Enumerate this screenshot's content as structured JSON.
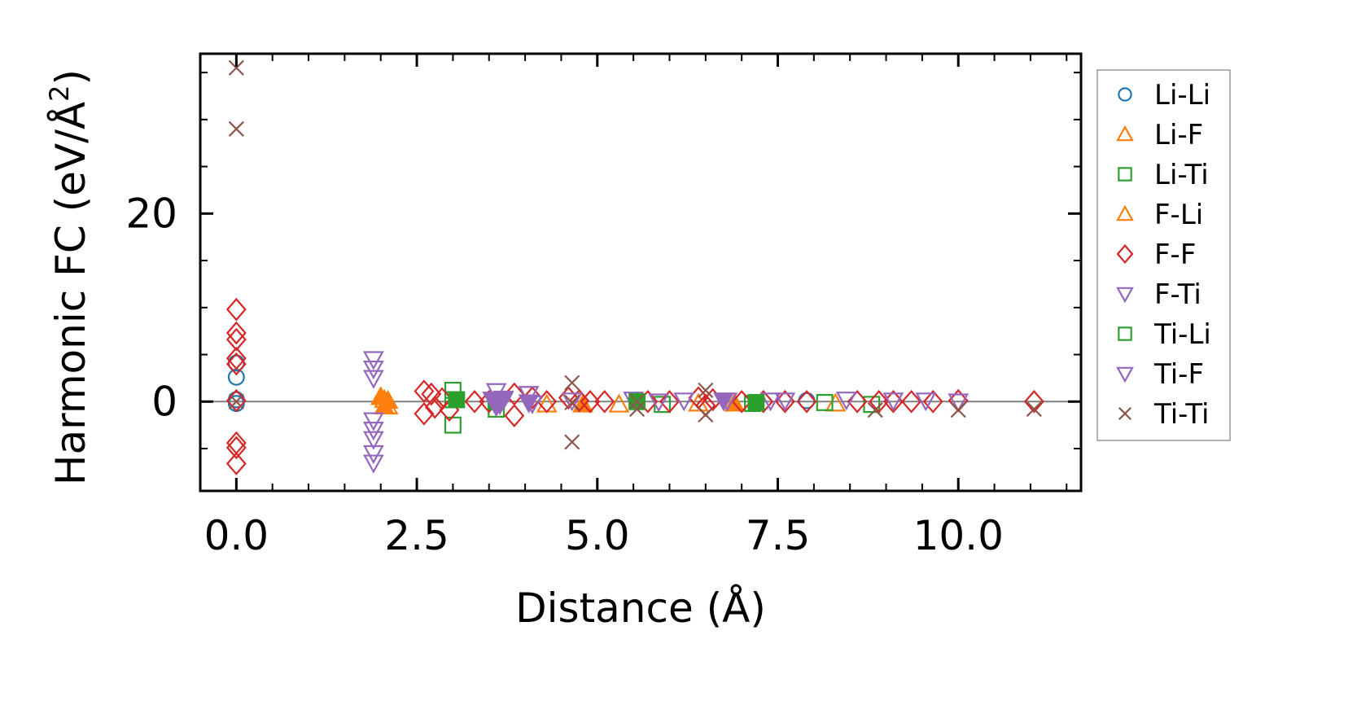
{
  "chart_data": {
    "type": "scatter",
    "title": "",
    "xlabel": "Distance (Å)",
    "ylabel": "Harmonic FC (eV/Å",
    "ylabel_superscript": "2",
    "ylabel_close": ")",
    "xlim": [
      -0.5,
      11.7
    ],
    "ylim": [
      -9.5,
      37.0
    ],
    "xticks": [
      0.0,
      2.5,
      5.0,
      7.5,
      10.0
    ],
    "xtick_labels": [
      "0.0",
      "2.5",
      "5.0",
      "7.5",
      "10.0"
    ],
    "yticks": [
      0,
      20
    ],
    "ytick_labels": [
      "0",
      "20"
    ],
    "reference_line_y": 0,
    "legend_position": "outside-right",
    "series": [
      {
        "name": "Li-Li",
        "marker": "circle",
        "color": "#1f77b4",
        "filled": false,
        "points": [
          [
            0,
            4.1
          ],
          [
            0,
            2.6
          ],
          [
            0,
            0.2
          ],
          [
            0,
            -0.2
          ],
          [
            5.55,
            0.1
          ],
          [
            7.9,
            0.1
          ]
        ]
      },
      {
        "name": "Li-F",
        "marker": "triangle-up",
        "color": "#ff7f0e",
        "filled": false,
        "points": [
          [
            2.05,
            0.2
          ],
          [
            2.1,
            -0.5
          ],
          [
            4.3,
            -0.3
          ],
          [
            5.3,
            -0.3
          ],
          [
            6.4,
            -0.2
          ],
          [
            8.3,
            -0.2
          ]
        ]
      },
      {
        "name": "Li-Ti",
        "marker": "square",
        "color": "#2ca02c",
        "filled": false,
        "points": [
          [
            3.0,
            1.2
          ],
          [
            3.0,
            -2.5
          ],
          [
            3.0,
            0.2
          ],
          [
            3.6,
            -0.8
          ],
          [
            5.9,
            -0.3
          ],
          [
            7.15,
            -0.2
          ],
          [
            8.15,
            -0.1
          ],
          [
            8.8,
            -0.3
          ]
        ]
      },
      {
        "name": "F-Li",
        "marker": "triangle-up",
        "color": "#ff7f0e",
        "filled": true,
        "points": [
          [
            2.0,
            0.5
          ],
          [
            2.05,
            -0.5
          ],
          [
            2.1,
            0.1
          ],
          [
            4.8,
            -0.3
          ],
          [
            6.9,
            -0.2
          ]
        ]
      },
      {
        "name": "F-F",
        "marker": "diamond",
        "color": "#d62728",
        "filled": false,
        "points": [
          [
            0,
            9.8
          ],
          [
            0,
            7.3
          ],
          [
            0,
            6.6
          ],
          [
            0,
            4.6
          ],
          [
            0,
            4.0
          ],
          [
            0,
            -4.4
          ],
          [
            0,
            -4.9
          ],
          [
            0,
            -6.6
          ],
          [
            0,
            0.1
          ],
          [
            2.6,
            1.1
          ],
          [
            2.6,
            -1.3
          ],
          [
            2.7,
            0.8
          ],
          [
            2.75,
            -0.6
          ],
          [
            2.85,
            0.3
          ],
          [
            2.95,
            -0.9
          ],
          [
            3.3,
            0.0
          ],
          [
            3.5,
            0.0
          ],
          [
            3.85,
            0.8
          ],
          [
            3.85,
            -1.5
          ],
          [
            4.1,
            0.4
          ],
          [
            4.3,
            0.0
          ],
          [
            4.6,
            0.4
          ],
          [
            4.75,
            0.1
          ],
          [
            4.9,
            0.0
          ],
          [
            5.1,
            0.0
          ],
          [
            5.7,
            0.0
          ],
          [
            6.0,
            0.0
          ],
          [
            6.4,
            0.4
          ],
          [
            6.5,
            -0.4
          ],
          [
            6.6,
            0.2
          ],
          [
            7.0,
            0.0
          ],
          [
            7.3,
            0.0
          ],
          [
            7.6,
            0.0
          ],
          [
            7.9,
            0.0
          ],
          [
            8.6,
            0.0
          ],
          [
            8.9,
            0.0
          ],
          [
            9.1,
            0.0
          ],
          [
            9.35,
            0.0
          ],
          [
            9.65,
            0.0
          ],
          [
            10.0,
            0.1
          ],
          [
            11.05,
            0.0
          ]
        ]
      },
      {
        "name": "F-Ti",
        "marker": "triangle-down",
        "color": "#9467bd",
        "filled": false,
        "points": [
          [
            1.9,
            4.5
          ],
          [
            1.9,
            3.5
          ],
          [
            1.9,
            2.5
          ],
          [
            1.9,
            -2.0
          ],
          [
            1.9,
            -3.0
          ],
          [
            1.9,
            -4.0
          ],
          [
            1.9,
            -5.5
          ],
          [
            1.9,
            -6.5
          ],
          [
            3.6,
            1.1
          ],
          [
            3.6,
            -0.5
          ],
          [
            3.7,
            0.2
          ],
          [
            4.05,
            0.8
          ],
          [
            4.1,
            -0.2
          ],
          [
            4.65,
            0.1
          ],
          [
            5.5,
            0.2
          ],
          [
            5.85,
            0.0
          ],
          [
            6.2,
            0.1
          ],
          [
            6.8,
            0.1
          ],
          [
            7.4,
            0.1
          ],
          [
            7.6,
            0.1
          ],
          [
            8.45,
            0.2
          ],
          [
            9.1,
            0.1
          ],
          [
            9.55,
            0.1
          ],
          [
            10.0,
            0.0
          ]
        ]
      },
      {
        "name": "Ti-Li",
        "marker": "square",
        "color": "#2ca02c",
        "filled": true,
        "points": [
          [
            3.05,
            0.2
          ],
          [
            3.6,
            0.0
          ],
          [
            5.55,
            0.0
          ],
          [
            7.2,
            -0.1
          ]
        ]
      },
      {
        "name": "Ti-F",
        "marker": "triangle-down",
        "color": "#9467bd",
        "filled": true,
        "points": [
          [
            3.55,
            0.2
          ],
          [
            3.65,
            -0.3
          ],
          [
            3.7,
            0.3
          ],
          [
            3.6,
            -0.2
          ],
          [
            4.05,
            -0.1
          ],
          [
            6.75,
            0.1
          ]
        ]
      },
      {
        "name": "Ti-Ti",
        "marker": "x",
        "color": "#8c564b",
        "filled": false,
        "points": [
          [
            0,
            35.5
          ],
          [
            0,
            29.0
          ],
          [
            0,
            0.0
          ],
          [
            4.65,
            2.0
          ],
          [
            4.65,
            -0.1
          ],
          [
            4.65,
            -4.3
          ],
          [
            5.55,
            0.0
          ],
          [
            5.55,
            -0.8
          ],
          [
            6.5,
            1.2
          ],
          [
            6.5,
            -1.4
          ],
          [
            8.85,
            -0.9
          ],
          [
            10.0,
            -0.9
          ],
          [
            11.05,
            -0.8
          ]
        ]
      }
    ]
  }
}
